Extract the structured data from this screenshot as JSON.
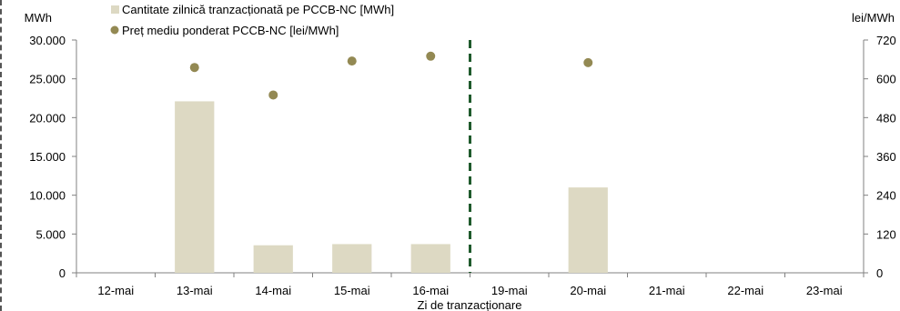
{
  "chart_data": {
    "type": "bar",
    "categories": [
      "12-mai",
      "13-mai",
      "14-mai",
      "15-mai",
      "16-mai",
      "19-mai",
      "20-mai",
      "21-mai",
      "22-mai",
      "23-mai"
    ],
    "series": [
      {
        "name": "Cantitate zilnică tranzacționată pe PCCB-NC [MWh]",
        "type": "bar",
        "axis": "left",
        "color": "#ddd9c3",
        "values": [
          0,
          22100,
          3550,
          3700,
          3700,
          0,
          11000,
          0,
          0,
          0
        ]
      },
      {
        "name": "Preț mediu ponderat PCCB-NC [lei/MWh]",
        "type": "scatter",
        "axis": "right",
        "color": "#938953",
        "values": [
          null,
          635,
          550,
          655,
          670,
          null,
          650,
          null,
          null,
          null
        ]
      }
    ],
    "y_left": {
      "unit": "MWh",
      "range": [
        0,
        30000
      ],
      "ticks": [
        0,
        5000,
        10000,
        15000,
        20000,
        25000,
        30000
      ],
      "tick_labels": [
        "0",
        "5.000",
        "10.000",
        "15.000",
        "20.000",
        "25.000",
        "30.000"
      ]
    },
    "y_right": {
      "unit": "lei/MWh",
      "range": [
        0,
        720
      ],
      "ticks": [
        0,
        120,
        240,
        360,
        480,
        600,
        720
      ],
      "tick_labels": [
        "0",
        "120",
        "240",
        "360",
        "480",
        "600",
        "720"
      ]
    },
    "xlabel": "Zi de tranzacționare",
    "divider_after_category": "16-mai",
    "divider_color": "#1f5a2c",
    "grid": false,
    "legend_position": "top-left"
  }
}
